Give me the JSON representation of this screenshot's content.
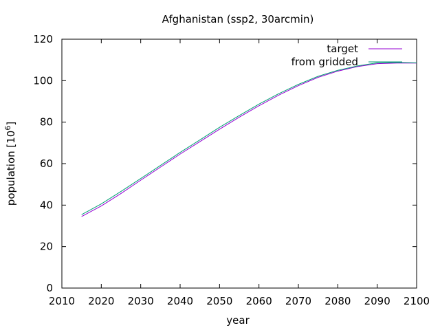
{
  "chart_data": {
    "type": "line",
    "title": "Afghanistan (ssp2, 30arcmin)",
    "xlabel": "year",
    "ylabel": {
      "base": "population [10",
      "exponent": "6",
      "end": "]"
    },
    "xlim": [
      2010,
      2100
    ],
    "ylim": [
      0,
      120
    ],
    "x_ticks": [
      "2010",
      "2020",
      "2030",
      "2040",
      "2050",
      "2060",
      "2070",
      "2080",
      "2090",
      "2100"
    ],
    "y_ticks": [
      "0",
      "20",
      "40",
      "60",
      "80",
      "100",
      "120"
    ],
    "grid": false,
    "legend_position": "top-right",
    "series": [
      {
        "name": "target",
        "color": "#9400d3",
        "x": [
          2015,
          2020,
          2025,
          2030,
          2035,
          2040,
          2045,
          2050,
          2055,
          2060,
          2065,
          2070,
          2075,
          2080,
          2085,
          2090,
          2095,
          2100
        ],
        "y": [
          34.5,
          39.6,
          45.6,
          52.0,
          58.3,
          64.6,
          70.6,
          76.6,
          82.4,
          87.9,
          93.0,
          97.6,
          101.6,
          104.6,
          106.8,
          108.2,
          108.5,
          108.5
        ]
      },
      {
        "name": "from gridded",
        "color": "#009e73",
        "x": [
          2015,
          2020,
          2025,
          2030,
          2035,
          2040,
          2045,
          2050,
          2055,
          2060,
          2065,
          2070,
          2075,
          2080,
          2085,
          2090,
          2095,
          2100
        ],
        "y": [
          35.4,
          40.6,
          46.6,
          52.8,
          59.1,
          65.4,
          71.4,
          77.5,
          83.2,
          88.7,
          93.7,
          98.2,
          102.1,
          105.0,
          107.1,
          108.6,
          108.8,
          108.6
        ]
      }
    ]
  }
}
